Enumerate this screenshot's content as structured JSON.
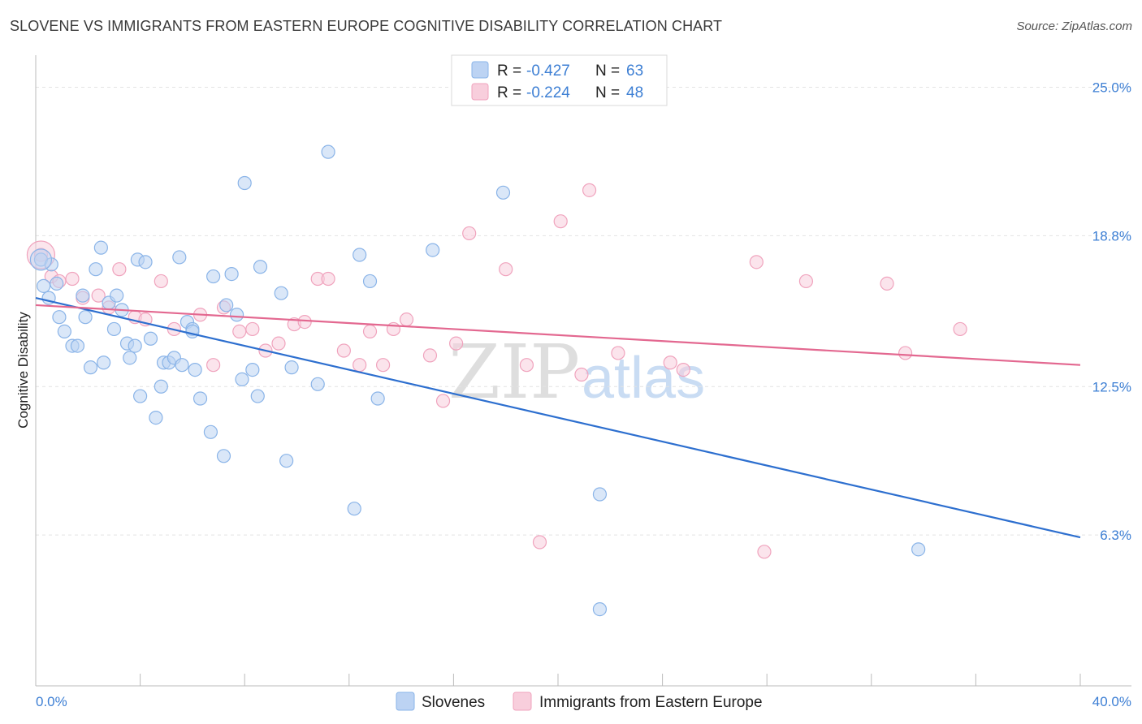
{
  "title": "SLOVENE VS IMMIGRANTS FROM EASTERN EUROPE COGNITIVE DISABILITY CORRELATION CHART",
  "source": "Source: ZipAtlas.com",
  "chart_data": {
    "type": "scatter",
    "xlabel": "",
    "ylabel": "Cognitive Disability",
    "xlim": [
      0,
      40
    ],
    "ylim": [
      0,
      26
    ],
    "x_tick_labels": [
      "0.0%",
      "40.0%"
    ],
    "y_ticks": [
      6.3,
      12.5,
      18.8,
      25.0
    ],
    "y_tick_labels": [
      "6.3%",
      "12.5%",
      "18.8%",
      "25.0%"
    ],
    "grid": true,
    "watermark": [
      "ZIP",
      "atlas"
    ],
    "legend": {
      "r_label": "R =",
      "n_label": "N =",
      "entries": [
        {
          "name": "Slovenes",
          "r": "-0.427",
          "n": "63"
        },
        {
          "name": "Immigrants from Eastern Europe",
          "r": "-0.224",
          "n": "48"
        }
      ]
    },
    "series": [
      {
        "name": "Slovenes",
        "color": "#8ab4e8",
        "fill": "#bcd3f3",
        "line_color": "#2d6fcf",
        "trend": {
          "x": [
            0,
            40
          ],
          "y": [
            16.2,
            6.2
          ]
        },
        "points": [
          [
            0.2,
            17.8
          ],
          [
            0.3,
            16.7
          ],
          [
            0.5,
            16.2
          ],
          [
            0.6,
            17.6
          ],
          [
            0.8,
            16.8
          ],
          [
            0.9,
            15.4
          ],
          [
            1.1,
            14.8
          ],
          [
            1.4,
            14.2
          ],
          [
            1.6,
            14.2
          ],
          [
            1.8,
            16.3
          ],
          [
            1.9,
            15.4
          ],
          [
            2.1,
            13.3
          ],
          [
            2.3,
            17.4
          ],
          [
            2.5,
            18.3
          ],
          [
            2.6,
            13.5
          ],
          [
            2.8,
            16.0
          ],
          [
            3.0,
            14.9
          ],
          [
            3.1,
            16.3
          ],
          [
            3.3,
            15.7
          ],
          [
            3.5,
            14.3
          ],
          [
            3.6,
            13.7
          ],
          [
            3.8,
            14.2
          ],
          [
            3.9,
            17.8
          ],
          [
            4.0,
            12.1
          ],
          [
            4.2,
            17.7
          ],
          [
            4.4,
            14.5
          ],
          [
            4.6,
            11.2
          ],
          [
            4.8,
            12.5
          ],
          [
            4.9,
            13.5
          ],
          [
            5.1,
            13.5
          ],
          [
            5.3,
            13.7
          ],
          [
            5.5,
            17.9
          ],
          [
            5.6,
            13.4
          ],
          [
            5.8,
            15.2
          ],
          [
            6.0,
            14.9
          ],
          [
            6.1,
            13.2
          ],
          [
            6.3,
            12.0
          ],
          [
            6.7,
            10.6
          ],
          [
            6.8,
            17.1
          ],
          [
            7.2,
            9.6
          ],
          [
            7.3,
            15.9
          ],
          [
            7.5,
            17.2
          ],
          [
            7.7,
            15.5
          ],
          [
            7.9,
            12.8
          ],
          [
            8.0,
            21.0
          ],
          [
            8.3,
            13.2
          ],
          [
            8.5,
            12.1
          ],
          [
            8.6,
            17.5
          ],
          [
            9.4,
            16.4
          ],
          [
            9.6,
            9.4
          ],
          [
            9.8,
            13.3
          ],
          [
            10.8,
            12.6
          ],
          [
            11.2,
            22.3
          ],
          [
            12.2,
            7.4
          ],
          [
            12.4,
            18.0
          ],
          [
            12.8,
            16.9
          ],
          [
            13.1,
            12.0
          ],
          [
            15.2,
            18.2
          ],
          [
            17.9,
            20.6
          ],
          [
            21.6,
            8.0
          ],
          [
            21.6,
            3.2
          ],
          [
            33.8,
            5.7
          ],
          [
            6.0,
            14.8
          ]
        ]
      },
      {
        "name": "Immigrants from Eastern Europe",
        "color": "#f0a3bd",
        "fill": "#f8cedc",
        "line_color": "#e36890",
        "trend": {
          "x": [
            0,
            40
          ],
          "y": [
            15.9,
            13.4
          ]
        },
        "points": [
          [
            0.2,
            18.0
          ],
          [
            0.6,
            17.1
          ],
          [
            0.9,
            16.9
          ],
          [
            1.4,
            17.0
          ],
          [
            1.8,
            16.2
          ],
          [
            2.4,
            16.3
          ],
          [
            2.8,
            15.8
          ],
          [
            3.2,
            17.4
          ],
          [
            3.8,
            15.4
          ],
          [
            4.2,
            15.3
          ],
          [
            4.8,
            16.9
          ],
          [
            5.3,
            14.9
          ],
          [
            6.3,
            15.5
          ],
          [
            6.8,
            13.4
          ],
          [
            7.2,
            15.8
          ],
          [
            7.8,
            14.8
          ],
          [
            8.3,
            14.9
          ],
          [
            8.8,
            14.0
          ],
          [
            9.3,
            14.3
          ],
          [
            9.9,
            15.1
          ],
          [
            10.3,
            15.2
          ],
          [
            10.8,
            17.0
          ],
          [
            11.2,
            17.0
          ],
          [
            11.8,
            14.0
          ],
          [
            12.4,
            13.4
          ],
          [
            12.8,
            14.8
          ],
          [
            13.3,
            13.4
          ],
          [
            13.7,
            14.9
          ],
          [
            14.2,
            15.3
          ],
          [
            15.1,
            13.8
          ],
          [
            15.6,
            11.9
          ],
          [
            16.1,
            14.3
          ],
          [
            16.6,
            18.9
          ],
          [
            18.0,
            17.4
          ],
          [
            18.8,
            13.4
          ],
          [
            19.3,
            6.0
          ],
          [
            20.1,
            19.4
          ],
          [
            20.9,
            13.0
          ],
          [
            21.2,
            20.7
          ],
          [
            22.3,
            13.9
          ],
          [
            24.3,
            13.5
          ],
          [
            24.8,
            13.2
          ],
          [
            27.6,
            17.7
          ],
          [
            27.9,
            5.6
          ],
          [
            29.5,
            16.9
          ],
          [
            32.6,
            16.8
          ],
          [
            33.3,
            13.9
          ],
          [
            35.4,
            14.9
          ]
        ]
      }
    ]
  }
}
